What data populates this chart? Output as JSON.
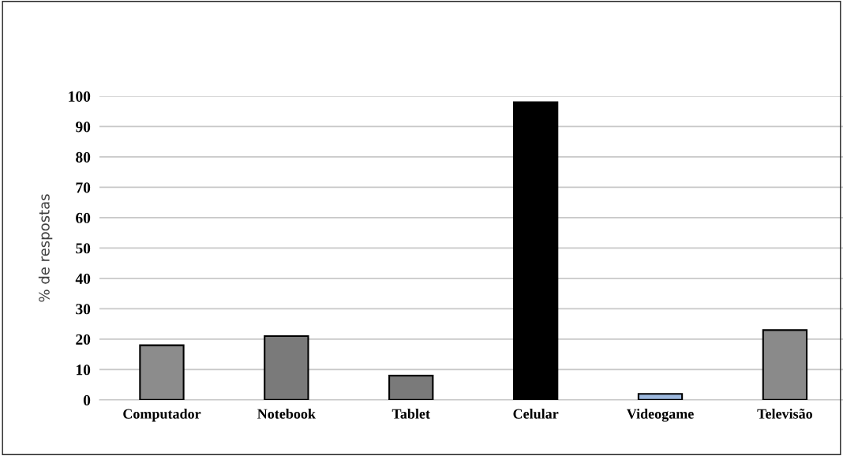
{
  "chart_data": {
    "type": "bar",
    "ylabel": "% de respostas",
    "categories": [
      "Computador",
      "Notebook",
      "Tablet",
      "Celular",
      "Videogame",
      "Televisão"
    ],
    "values": [
      18,
      21,
      8,
      98,
      2,
      23
    ],
    "colors": [
      "#8c8c8c",
      "#7a7a7a",
      "#7a7a7a",
      "#000000",
      "#9db8de",
      "#8a8a8a"
    ],
    "ylim": [
      0,
      100
    ],
    "yticks": [
      0,
      10,
      20,
      30,
      40,
      50,
      60,
      70,
      80,
      90,
      100
    ],
    "grid": "y"
  }
}
